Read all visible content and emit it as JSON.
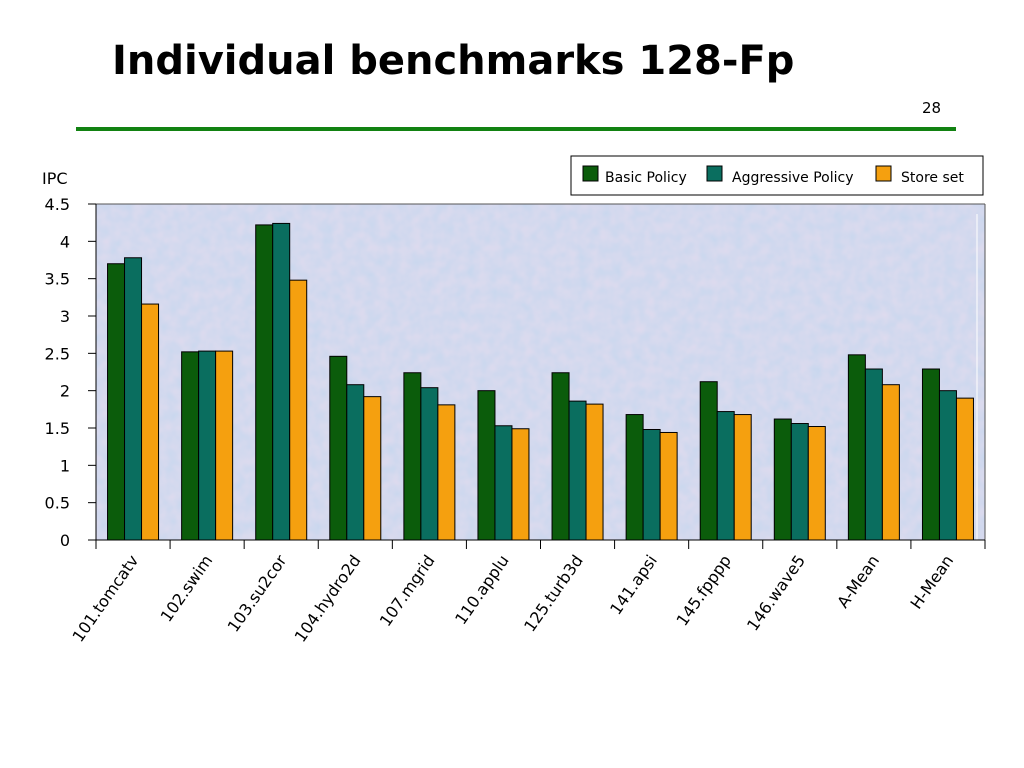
{
  "slide": {
    "title": "Individual benchmarks 128-Fp",
    "page_number": "28"
  },
  "colors": {
    "title_rule": "#128212",
    "plot_background": "#c9d7ee"
  },
  "chart_data": {
    "type": "bar",
    "title": "Individual benchmarks 128-Fp",
    "ylabel": "IPC",
    "xlabel": "",
    "ylim": [
      0,
      4.5
    ],
    "yticks": [
      "0",
      "0.5",
      "1",
      "1.5",
      "2",
      "2.5",
      "3",
      "3.5",
      "4",
      "4.5"
    ],
    "categories": [
      "101.tomcatv",
      "102.swim",
      "103.su2cor",
      "104.hydro2d",
      "107.mgrid",
      "110.applu",
      "125.turb3d",
      "141.apsi",
      "145.fpppp",
      "146.wave5",
      "A-Mean",
      "H-Mean"
    ],
    "series": [
      {
        "name": "Basic Policy",
        "color": "#0b5c0b",
        "values": [
          3.7,
          2.52,
          4.22,
          2.46,
          2.24,
          2.0,
          2.24,
          1.68,
          2.12,
          1.62,
          2.48,
          2.29
        ]
      },
      {
        "name": "Aggressive Policy",
        "color": "#0a6e5f",
        "values": [
          3.78,
          2.53,
          4.24,
          2.08,
          2.04,
          1.53,
          1.86,
          1.48,
          1.72,
          1.56,
          2.29,
          2.0
        ]
      },
      {
        "name": "Store set",
        "color": "#f5a00f",
        "values": [
          3.16,
          2.53,
          3.48,
          1.92,
          1.81,
          1.49,
          1.82,
          1.44,
          1.68,
          1.52,
          2.08,
          1.9
        ]
      }
    ],
    "legend_position": "top-right",
    "grid": false
  }
}
